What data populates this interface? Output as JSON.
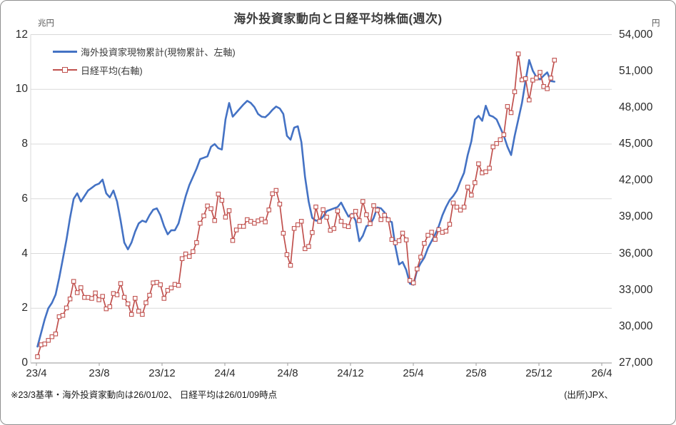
{
  "header": {
    "title": "海外投資家動向と日経平均株価(週次)"
  },
  "legend": {
    "items": [
      {
        "label": "海外投資家現物累計(現物累計、左軸)",
        "color": "#4472C4",
        "marker": "line"
      },
      {
        "label": "日経平均(右軸)",
        "color": "#C0504D",
        "marker": "line-open-square"
      }
    ]
  },
  "footer": {
    "note": "※23/3基準・海外投資家動向は26/01/02、 日経平均は26/01/09時点",
    "source": "(出所)JPX、"
  },
  "colors": {
    "blue": "#4472C4",
    "red": "#C0504D",
    "grid": "#D9D9D9",
    "axis": "#ABABAB"
  },
  "chart_data": {
    "type": "line",
    "title": "海外投資家動向と日経平均株価(週次)",
    "frequency": "weekly",
    "x_axis": {
      "tick_labels": [
        "23/4",
        "23/8",
        "23/12",
        "24/4",
        "24/8",
        "24/12",
        "25/4",
        "25/8",
        "25/12",
        "26/4"
      ],
      "months_per_tick": 4,
      "total_months": 36
    },
    "left_axis": {
      "unit": "兆円",
      "min": 0,
      "max": 12,
      "tick_labels": [
        "12",
        "10",
        "8",
        "6",
        "4",
        "2",
        "0"
      ]
    },
    "right_axis": {
      "unit": "円",
      "min": 27000,
      "max": 54000,
      "tick_labels": [
        "54,000",
        "51,000",
        "48,000",
        "45,000",
        "42,000",
        "39,000",
        "36,000",
        "33,000",
        "30,000",
        "27,000"
      ]
    },
    "first_point_month_offset": 0.07,
    "week_step_months": 0.2302,
    "grid": "horizontal-only",
    "legend_position": "top-left-inside",
    "series": [
      {
        "name": "海外投資家現物累計(現物累計、左軸)",
        "axis": "left",
        "color": "#4472C4",
        "line_width": 2.6,
        "marker": "none",
        "values": [
          0.6,
          1.1,
          1.6,
          2.0,
          2.2,
          2.5,
          3.1,
          3.8,
          4.5,
          5.3,
          6.0,
          6.2,
          5.9,
          6.1,
          6.3,
          6.4,
          6.5,
          6.55,
          6.7,
          6.2,
          6.05,
          6.3,
          5.9,
          5.2,
          4.4,
          4.15,
          4.4,
          4.8,
          5.1,
          5.2,
          5.15,
          5.4,
          5.6,
          5.65,
          5.4,
          5.0,
          4.7,
          4.85,
          4.85,
          5.1,
          5.6,
          6.1,
          6.5,
          6.8,
          7.1,
          7.45,
          7.5,
          7.55,
          7.9,
          8.0,
          7.85,
          7.8,
          8.9,
          9.5,
          9.0,
          9.15,
          9.3,
          9.45,
          9.58,
          9.5,
          9.35,
          9.1,
          9.0,
          8.98,
          9.1,
          9.25,
          9.37,
          9.3,
          9.1,
          8.3,
          8.16,
          8.6,
          8.65,
          8.07,
          6.8,
          5.9,
          5.3,
          5.2,
          5.2,
          5.35,
          5.55,
          5.6,
          5.65,
          5.7,
          5.86,
          5.6,
          5.35,
          5.45,
          5.2,
          4.45,
          4.65,
          5.0,
          5.05,
          5.3,
          5.68,
          5.65,
          5.5,
          5.2,
          5.15,
          4.25,
          3.6,
          3.69,
          3.4,
          2.9,
          2.86,
          3.4,
          3.65,
          3.85,
          4.2,
          4.45,
          4.7,
          5.0,
          5.4,
          5.7,
          5.95,
          6.1,
          6.3,
          6.65,
          6.95,
          7.6,
          8.1,
          8.9,
          9.03,
          8.85,
          9.4,
          9.05,
          9.0,
          8.9,
          8.6,
          8.3,
          7.9,
          7.6,
          8.3,
          8.9,
          9.5,
          10.3,
          11.07,
          10.68,
          10.45,
          10.36,
          10.5,
          10.62,
          10.3,
          10.28
        ]
      },
      {
        "name": "日経平均(右軸)",
        "axis": "right",
        "color": "#C0504D",
        "line_width": 1.7,
        "marker": "open-square",
        "marker_size": 5.4,
        "values": [
          27518,
          28493,
          28564,
          28856,
          29158,
          29388,
          30808,
          30916,
          31524,
          32265,
          33706,
          32782,
          33189,
          32388,
          32391,
          32304,
          32759,
          32193,
          32474,
          31451,
          31624,
          32711,
          32607,
          33533,
          32402,
          31858,
          30995,
          32316,
          31259,
          30992,
          31950,
          32568,
          33585,
          33626,
          33432,
          32308,
          32971,
          33169,
          33464,
          33377,
          35577,
          35963,
          35751,
          36158,
          36897,
          38487,
          39098,
          39910,
          39688,
          38708,
          40888,
          40369,
          38992,
          39524,
          37068,
          37934,
          38236,
          38229,
          38787,
          38646,
          38487,
          38684,
          38814,
          38596,
          39583,
          40912,
          41190,
          40063,
          37667,
          35909,
          35025,
          38062,
          38364,
          38648,
          36391,
          36582,
          37724,
          39830,
          38636,
          39606,
          38982,
          37914,
          38053,
          39500,
          38643,
          38284,
          38208,
          39091,
          39470,
          38702,
          40281,
          39190,
          38451,
          39932,
          39572,
          38787,
          39149,
          38776,
          37156,
          36887,
          37053,
          37677,
          37120,
          33781,
          33586,
          34730,
          35706,
          36830,
          37503,
          37754,
          37160,
          37965,
          37742,
          37834,
          38403,
          40151,
          39811,
          39570,
          39819,
          41456,
          40800,
          41820,
          43378,
          42633,
          42718,
          43019,
          44768,
          45045,
          45355,
          45770,
          48089,
          47582,
          49300,
          52411,
          50276,
          50376,
          48626,
          50253,
          50430,
          50900,
          49730,
          49550,
          50430,
          51900
        ]
      }
    ]
  }
}
